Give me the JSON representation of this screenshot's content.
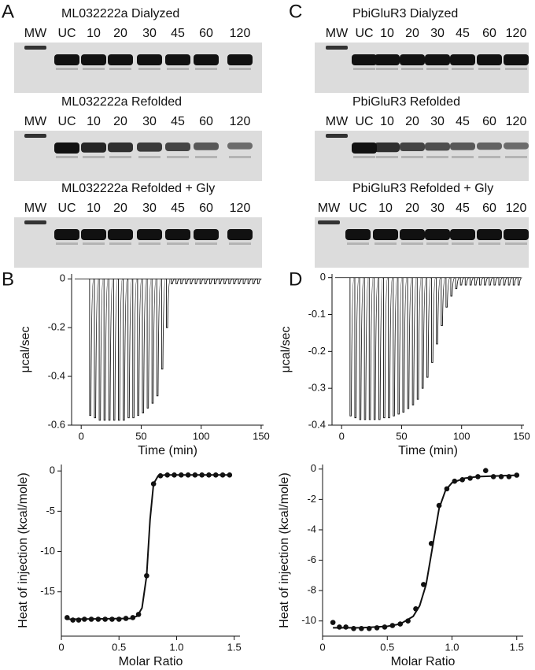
{
  "panel_labels": [
    "A",
    "B",
    "C",
    "D"
  ],
  "gels": [
    {
      "rows": [
        {
          "title": "ML032222a Dialyzed",
          "lanes": [
            "MW",
            "UC",
            "10",
            "20",
            "30",
            "45",
            "60",
            "120"
          ]
        },
        {
          "title": "ML032222a Refolded",
          "lanes": [
            "MW",
            "UC",
            "10",
            "20",
            "30",
            "45",
            "60",
            "120"
          ]
        },
        {
          "title": "ML032222a Refolded + Gly",
          "lanes": [
            "MW",
            "UC",
            "10",
            "20",
            "30",
            "45",
            "60",
            "120"
          ]
        }
      ]
    },
    {
      "rows": [
        {
          "title": "PbiGluR3 Dialyzed",
          "lanes": [
            "MW",
            "UC",
            "10",
            "20",
            "30",
            "45",
            "60",
            "120"
          ]
        },
        {
          "title": "PbiGluR3 Refolded",
          "lanes": [
            "MW",
            "UC",
            "10",
            "20",
            "30",
            "45",
            "60",
            "120"
          ]
        },
        {
          "title": "PbiGluR3 Refolded + Gly",
          "lanes": [
            "MW",
            "UC",
            "10",
            "20",
            "30",
            "45",
            "60",
            "120"
          ]
        }
      ]
    }
  ],
  "chart_data": [
    {
      "type": "injections",
      "xlabel": "Time (min)",
      "ylabel": "μcal/sec",
      "x": [
        7,
        11,
        15,
        19,
        23,
        27,
        31,
        35,
        39,
        43,
        47,
        51,
        55,
        59,
        63,
        67,
        71,
        75,
        79,
        83,
        87,
        91,
        95,
        99,
        103,
        107,
        111,
        115,
        119,
        123,
        127,
        131,
        135,
        139,
        143,
        147
      ],
      "values": [
        -0.56,
        -0.57,
        -0.58,
        -0.58,
        -0.58,
        -0.58,
        -0.58,
        -0.58,
        -0.57,
        -0.57,
        -0.56,
        -0.55,
        -0.53,
        -0.51,
        -0.48,
        -0.37,
        -0.2,
        -0.02,
        -0.02,
        -0.02,
        -0.02,
        -0.02,
        -0.02,
        -0.02,
        -0.02,
        -0.02,
        -0.02,
        -0.02,
        -0.02,
        -0.02,
        -0.02,
        -0.02,
        -0.02,
        -0.02,
        -0.02,
        -0.02
      ],
      "xlim": [
        -8,
        152
      ],
      "xticks": [
        0,
        50,
        100,
        150
      ],
      "ylim": [
        -0.6,
        0.02
      ],
      "yticks": [
        0,
        -0.2,
        -0.4,
        -0.6
      ]
    },
    {
      "type": "scatter",
      "xlabel": "Molar Ratio",
      "ylabel": "Heat of injection (kcal/mole)",
      "x": [
        0.05,
        0.1,
        0.15,
        0.2,
        0.26,
        0.32,
        0.38,
        0.44,
        0.5,
        0.56,
        0.62,
        0.67,
        0.74,
        0.8,
        0.86,
        0.92,
        0.98,
        1.04,
        1.1,
        1.16,
        1.22,
        1.28,
        1.34,
        1.4,
        1.46
      ],
      "values": [
        -18.2,
        -18.5,
        -18.5,
        -18.4,
        -18.4,
        -18.4,
        -18.4,
        -18.4,
        -18.4,
        -18.3,
        -18.2,
        -17.8,
        -13,
        -1.6,
        -0.6,
        -0.5,
        -0.5,
        -0.5,
        -0.5,
        -0.5,
        -0.5,
        -0.5,
        -0.5,
        -0.5,
        -0.5
      ],
      "fit": {
        "x": [
          0.05,
          0.6,
          0.66,
          0.7,
          0.74,
          0.77,
          0.8,
          0.84,
          0.9,
          1.46
        ],
        "values": [
          -18.4,
          -18.3,
          -18.0,
          -17,
          -13,
          -6,
          -1.6,
          -0.6,
          -0.5,
          -0.5
        ]
      },
      "xlim": [
        0,
        1.55
      ],
      "xticks": [
        0,
        0.5,
        {
          "value": 1,
          "label": "1.0"
        },
        1.5
      ],
      "ylim": [
        -20.5,
        0.8
      ],
      "yticks": [
        0,
        -5,
        -10,
        -15
      ]
    },
    {
      "type": "injections",
      "xlabel": "Time (min)",
      "ylabel": "μcal/sec",
      "x": [
        7,
        11,
        15,
        19,
        23,
        27,
        31,
        35,
        39,
        43,
        47,
        51,
        55,
        59,
        63,
        67,
        71,
        75,
        79,
        83,
        87,
        91,
        95,
        99,
        103,
        107,
        111,
        115,
        119,
        123,
        127,
        131,
        135,
        139,
        143,
        147
      ],
      "values": [
        -0.375,
        -0.38,
        -0.385,
        -0.385,
        -0.385,
        -0.385,
        -0.385,
        -0.38,
        -0.38,
        -0.375,
        -0.37,
        -0.365,
        -0.355,
        -0.345,
        -0.33,
        -0.3,
        -0.27,
        -0.23,
        -0.18,
        -0.13,
        -0.08,
        -0.05,
        -0.03,
        -0.02,
        -0.02,
        -0.02,
        -0.02,
        -0.02,
        -0.02,
        -0.02,
        -0.02,
        -0.02,
        -0.02,
        -0.02,
        -0.02,
        -0.02
      ],
      "xlim": [
        -8,
        152
      ],
      "xticks": [
        0,
        50,
        100,
        150
      ],
      "ylim": [
        -0.4,
        0.01
      ],
      "yticks": [
        0,
        -0.1,
        -0.2,
        -0.3,
        -0.4
      ]
    },
    {
      "type": "scatter",
      "xlabel": "Molar Ratio",
      "ylabel": "Heat of injection (kcal/mole)",
      "x": [
        0.08,
        0.13,
        0.18,
        0.24,
        0.3,
        0.36,
        0.42,
        0.48,
        0.54,
        0.6,
        0.66,
        0.72,
        0.78,
        0.84,
        0.9,
        0.96,
        1.02,
        1.08,
        1.14,
        1.2,
        1.26,
        1.32,
        1.38,
        1.44,
        1.5
      ],
      "values": [
        -10.1,
        -10.4,
        -10.4,
        -10.5,
        -10.5,
        -10.5,
        -10.45,
        -10.4,
        -10.3,
        -10.2,
        -10.0,
        -9.2,
        -7.6,
        -4.9,
        -2.4,
        -1.3,
        -0.8,
        -0.7,
        -0.6,
        -0.5,
        -0.1,
        -0.5,
        -0.5,
        -0.5,
        -0.4
      ],
      "fit": {
        "x": [
          0.08,
          0.3,
          0.5,
          0.6,
          0.7,
          0.75,
          0.8,
          0.85,
          0.9,
          0.95,
          1.0,
          1.1,
          1.2,
          1.52
        ],
        "values": [
          -10.45,
          -10.45,
          -10.35,
          -10.2,
          -9.7,
          -9.0,
          -7.6,
          -5.1,
          -2.6,
          -1.4,
          -0.9,
          -0.6,
          -0.5,
          -0.4
        ]
      },
      "xlim": [
        0,
        1.55
      ],
      "xticks": [
        0,
        0.5,
        {
          "value": 1,
          "label": "1.0"
        },
        1.5
      ],
      "ylim": [
        -11,
        0.3
      ],
      "yticks": [
        0,
        -2,
        -4,
        -6,
        -8,
        -10
      ]
    }
  ]
}
